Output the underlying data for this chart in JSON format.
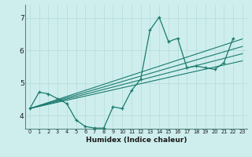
{
  "xlabel": "Humidex (Indice chaleur)",
  "background_color": "#ceeeed",
  "line_color": "#1a7a6e",
  "xlim": [
    -0.5,
    23.5
  ],
  "ylim": [
    3.6,
    7.4
  ],
  "yticks": [
    4,
    5,
    6,
    7
  ],
  "xticks": [
    0,
    1,
    2,
    3,
    4,
    5,
    6,
    7,
    8,
    9,
    10,
    11,
    12,
    13,
    14,
    15,
    16,
    17,
    18,
    19,
    20,
    21,
    22,
    23
  ],
  "main_series": {
    "x": [
      0,
      1,
      2,
      3,
      4,
      5,
      6,
      7,
      8,
      9,
      10,
      11,
      12,
      13,
      14,
      15,
      16,
      17,
      18,
      19,
      20,
      21,
      22
    ],
    "y": [
      4.22,
      4.72,
      4.67,
      4.52,
      4.37,
      3.87,
      3.67,
      3.62,
      3.62,
      4.27,
      4.22,
      4.77,
      5.12,
      6.62,
      7.02,
      6.27,
      6.37,
      5.47,
      5.52,
      5.47,
      5.42,
      5.62,
      6.37
    ]
  },
  "trend_lines": [
    {
      "x": [
        0,
        23
      ],
      "y": [
        4.22,
        6.35
      ]
    },
    {
      "x": [
        0,
        23
      ],
      "y": [
        4.22,
        6.12
      ]
    },
    {
      "x": [
        0,
        23
      ],
      "y": [
        4.22,
        5.9
      ]
    },
    {
      "x": [
        0,
        23
      ],
      "y": [
        4.22,
        5.68
      ]
    }
  ],
  "grid_color": "#b8dedd",
  "spine_color": "#5a8a85"
}
